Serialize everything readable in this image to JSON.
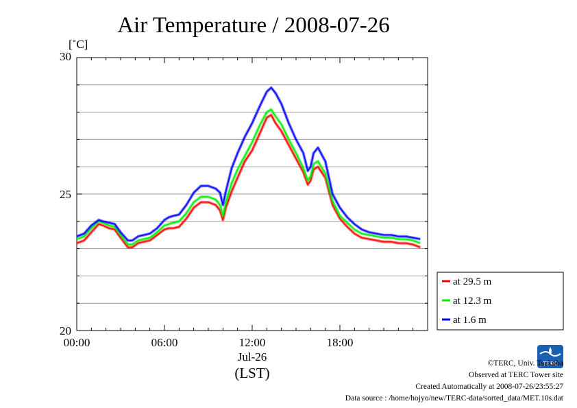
{
  "chart_data": {
    "type": "line",
    "title": "Air Temperature / 2008-07-26",
    "ylabel": "[˚C]",
    "xlabel_date": "Jul-26",
    "xlabel_unit": "(LST)",
    "ylim": [
      20,
      30
    ],
    "y_ticks": [
      "20",
      "25",
      "30"
    ],
    "y_grid_step": 1,
    "x_range_hours": [
      0,
      24
    ],
    "x_ticks": [
      "00:00",
      "06:00",
      "12:00",
      "18:00"
    ],
    "grid": true,
    "legend_position": "right",
    "series": [
      {
        "name": "at 29.5 m",
        "color": "#ff0000",
        "x_hours": [
          0,
          0.5,
          1,
          1.5,
          1.8,
          2.2,
          2.6,
          3,
          3.5,
          3.8,
          4.2,
          4.6,
          5,
          5.5,
          6,
          6.3,
          6.6,
          7,
          7.5,
          8,
          8.5,
          9,
          9.5,
          9.8,
          10,
          10.2,
          10.6,
          11,
          11.5,
          12,
          12.5,
          13,
          13.3,
          13.6,
          14,
          14.5,
          15,
          15.5,
          15.8,
          16,
          16.2,
          16.5,
          17,
          17.5,
          18,
          18.5,
          19,
          19.5,
          20,
          20.5,
          21,
          21.5,
          22,
          22.5,
          23,
          23.5
        ],
        "values": [
          23.2,
          23.3,
          23.6,
          23.9,
          23.85,
          23.75,
          23.7,
          23.4,
          23.05,
          23.05,
          23.2,
          23.25,
          23.3,
          23.5,
          23.7,
          23.75,
          23.75,
          23.8,
          24.1,
          24.5,
          24.7,
          24.7,
          24.6,
          24.4,
          24.05,
          24.5,
          25.1,
          25.6,
          26.2,
          26.6,
          27.2,
          27.8,
          27.9,
          27.6,
          27.3,
          26.8,
          26.3,
          25.8,
          25.35,
          25.5,
          25.9,
          26.0,
          25.6,
          24.6,
          24.1,
          23.8,
          23.55,
          23.4,
          23.35,
          23.3,
          23.25,
          23.25,
          23.2,
          23.2,
          23.15,
          23.05
        ]
      },
      {
        "name": "at 12.3 m",
        "color": "#00ee00",
        "x_hours": [
          0,
          0.5,
          1,
          1.5,
          1.8,
          2.2,
          2.6,
          3,
          3.5,
          3.8,
          4.2,
          4.6,
          5,
          5.5,
          6,
          6.3,
          6.6,
          7,
          7.5,
          8,
          8.5,
          9,
          9.5,
          9.8,
          10,
          10.2,
          10.6,
          11,
          11.5,
          12,
          12.5,
          13,
          13.3,
          13.6,
          14,
          14.5,
          15,
          15.5,
          15.8,
          16,
          16.2,
          16.5,
          17,
          17.5,
          18,
          18.5,
          19,
          19.5,
          20,
          20.5,
          21,
          21.5,
          22,
          22.5,
          23,
          23.5
        ],
        "values": [
          23.35,
          23.45,
          23.75,
          24.0,
          23.95,
          23.85,
          23.8,
          23.5,
          23.15,
          23.15,
          23.3,
          23.35,
          23.4,
          23.6,
          23.85,
          23.9,
          23.95,
          24.0,
          24.3,
          24.7,
          24.9,
          24.9,
          24.8,
          24.6,
          24.2,
          24.7,
          25.4,
          25.9,
          26.4,
          26.9,
          27.5,
          28.0,
          28.1,
          27.85,
          27.55,
          27.0,
          26.5,
          25.95,
          25.5,
          25.65,
          26.1,
          26.2,
          25.75,
          24.75,
          24.2,
          23.95,
          23.7,
          23.55,
          23.5,
          23.45,
          23.4,
          23.4,
          23.35,
          23.35,
          23.3,
          23.2
        ]
      },
      {
        "name": "at 1.6 m",
        "color": "#0000ff",
        "x_hours": [
          0,
          0.5,
          1,
          1.5,
          1.8,
          2.2,
          2.6,
          3,
          3.5,
          3.8,
          4.2,
          4.6,
          5,
          5.5,
          6,
          6.3,
          6.6,
          7,
          7.5,
          8,
          8.5,
          9,
          9.5,
          9.8,
          10,
          10.2,
          10.6,
          11,
          11.5,
          12,
          12.5,
          13,
          13.3,
          13.6,
          14,
          14.5,
          15,
          15.5,
          15.8,
          16,
          16.2,
          16.5,
          17,
          17.5,
          18,
          18.5,
          19,
          19.5,
          20,
          20.5,
          21,
          21.5,
          22,
          22.5,
          23,
          23.5
        ],
        "values": [
          23.45,
          23.55,
          23.85,
          24.05,
          24.0,
          23.95,
          23.9,
          23.6,
          23.3,
          23.3,
          23.45,
          23.5,
          23.55,
          23.75,
          24.05,
          24.15,
          24.2,
          24.25,
          24.6,
          25.05,
          25.3,
          25.3,
          25.2,
          25.05,
          24.6,
          25.1,
          25.95,
          26.5,
          27.1,
          27.6,
          28.2,
          28.75,
          28.9,
          28.7,
          28.3,
          27.6,
          27.0,
          26.5,
          25.85,
          26.0,
          26.5,
          26.7,
          26.2,
          25.0,
          24.5,
          24.15,
          23.9,
          23.7,
          23.6,
          23.55,
          23.5,
          23.5,
          23.45,
          23.45,
          23.4,
          23.35
        ]
      }
    ]
  },
  "credits": {
    "logo_text": "TERC",
    "lines": [
      "©TERC, Univ. Tsukuba",
      "Observed at TERC Tower site",
      "Created Automatically at 2008-07-26/23:55:27",
      "Data source : /home/hojyo/new/TERC-data/sorted_data/MET.10s.dat"
    ]
  }
}
